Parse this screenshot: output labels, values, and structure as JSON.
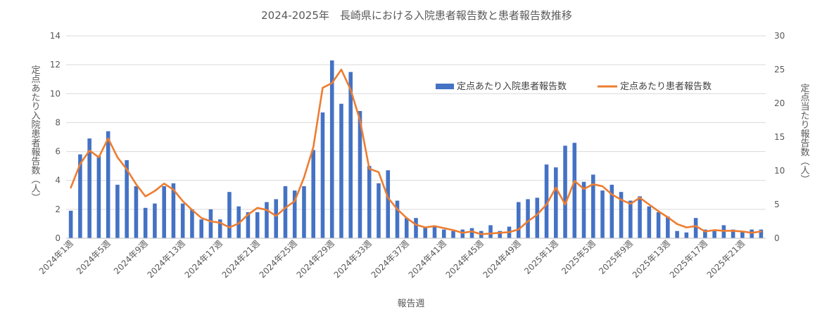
{
  "chart_data": {
    "type": "bar+line",
    "title": "2024-2025年　長崎県における入院患者報告数と患者報告数推移",
    "xlabel": "報告週",
    "ylabel_left": "定点あたり入院患者報告数（人）",
    "ylabel_right": "定点当たり報告数（人）",
    "y_left_range": [
      0,
      14
    ],
    "y_left_ticks": [
      "0",
      "2",
      "4",
      "6",
      "8",
      "10",
      "12",
      "14"
    ],
    "y_right_range": [
      0,
      30
    ],
    "y_right_ticks": [
      "0",
      "5",
      "10",
      "15",
      "20",
      "25",
      "30"
    ],
    "x_tick_labels": [
      "2024年1週",
      "2024年5週",
      "2024年9週",
      "2024年13週",
      "2024年17週",
      "2024年21週",
      "2024年25週",
      "2024年29週",
      "2024年33週",
      "2024年37週",
      "2024年41週",
      "2024年45週",
      "2024年49週",
      "2025年1週",
      "2025年5週",
      "2025年9週",
      "2025年13週",
      "2025年17週",
      "2025年21週"
    ],
    "legend": {
      "placement": "top-right"
    },
    "grid": true,
    "bar_color": "#4472C4",
    "line_color": "#ED7D31",
    "series": [
      {
        "name": "定点あたり入院患者報告数",
        "kind": "bar",
        "axis": "left",
        "values": [
          1.9,
          5.8,
          6.9,
          5.7,
          7.4,
          3.7,
          5.4,
          3.6,
          2.1,
          2.4,
          3.6,
          3.8,
          2.4,
          2.0,
          1.3,
          2.0,
          1.3,
          3.2,
          2.2,
          1.8,
          1.8,
          2.5,
          2.7,
          3.6,
          3.3,
          3.6,
          6.1,
          8.7,
          12.3,
          9.3,
          11.5,
          8.8,
          5.0,
          3.8,
          4.7,
          2.6,
          1.4,
          1.4,
          0.8,
          0.8,
          0.6,
          0.5,
          0.6,
          0.7,
          0.5,
          0.9,
          0.5,
          0.8,
          2.5,
          2.7,
          2.8,
          5.1,
          4.9,
          6.4,
          6.6,
          3.9,
          4.4,
          3.3,
          3.7,
          3.2,
          2.6,
          2.9,
          2.2,
          1.8,
          1.5,
          0.5,
          0.4,
          1.4,
          0.6,
          0.5,
          0.9,
          0.6,
          0.5,
          0.6,
          0.6
        ]
      },
      {
        "name": "定点あたり患者報告数",
        "kind": "line",
        "axis": "right",
        "values": [
          7.5,
          11.0,
          13.0,
          12.0,
          14.8,
          12.0,
          10.2,
          8.0,
          6.2,
          7.0,
          8.1,
          7.2,
          5.5,
          4.2,
          3.0,
          2.5,
          2.3,
          1.6,
          2.2,
          3.5,
          4.5,
          4.2,
          3.3,
          4.5,
          5.5,
          9.0,
          13.5,
          22.3,
          23.0,
          25.0,
          22.0,
          17.5,
          10.3,
          9.8,
          6.0,
          4.3,
          3.0,
          2.0,
          1.6,
          1.8,
          1.5,
          1.2,
          0.8,
          1.0,
          0.6,
          0.7,
          0.8,
          0.9,
          1.3,
          2.5,
          3.5,
          5.0,
          7.5,
          5.0,
          8.5,
          7.3,
          8.0,
          7.7,
          6.5,
          5.7,
          5.1,
          6.0,
          5.0,
          4.0,
          3.1,
          2.1,
          1.6,
          1.8,
          1.0,
          1.2,
          1.1,
          1.1,
          1.0,
          0.8,
          1.0
        ]
      }
    ]
  }
}
